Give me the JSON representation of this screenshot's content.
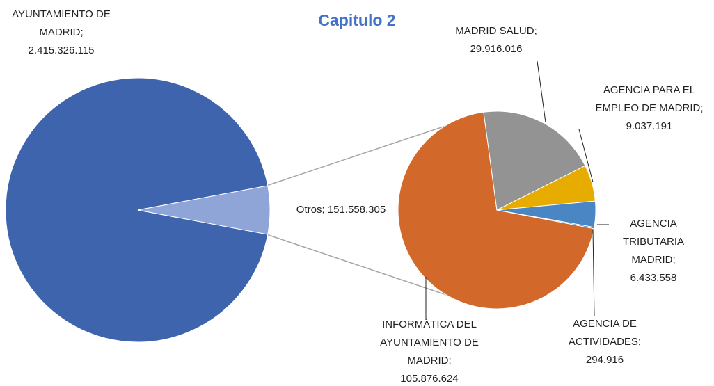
{
  "chart_data": [
    {
      "type": "pie",
      "title": "Capitulo 2",
      "categories": [
        "AYUNTAMIENTO DE MADRID;",
        "Otros;"
      ],
      "values": [
        2415326115,
        151558305
      ],
      "value_labels": [
        "2.415.326.115",
        "151.558.305"
      ],
      "colors": [
        "#3d64ad",
        "#8fa5d8"
      ]
    },
    {
      "type": "pie",
      "categories": [
        "INFORMÁTICA DEL AYUNTAMIENTO DE MADRID;",
        "MADRID SALUD;",
        "AGENCIA PARA EL EMPLEO DE MADRID;",
        "AGENCIA TRIBUTARIA MADRID;",
        "AGENCIA DE ACTIVIDADES;"
      ],
      "values": [
        105876624,
        29916016,
        9037191,
        6433558,
        294916
      ],
      "value_labels": [
        "105.876.624",
        "29.916.016",
        "9.037.191",
        "6.433.558",
        "294.916"
      ],
      "colors": [
        "#d2692a",
        "#939393",
        "#e6ac00",
        "#4a86c4",
        "#2e5e9e"
      ]
    }
  ]
}
